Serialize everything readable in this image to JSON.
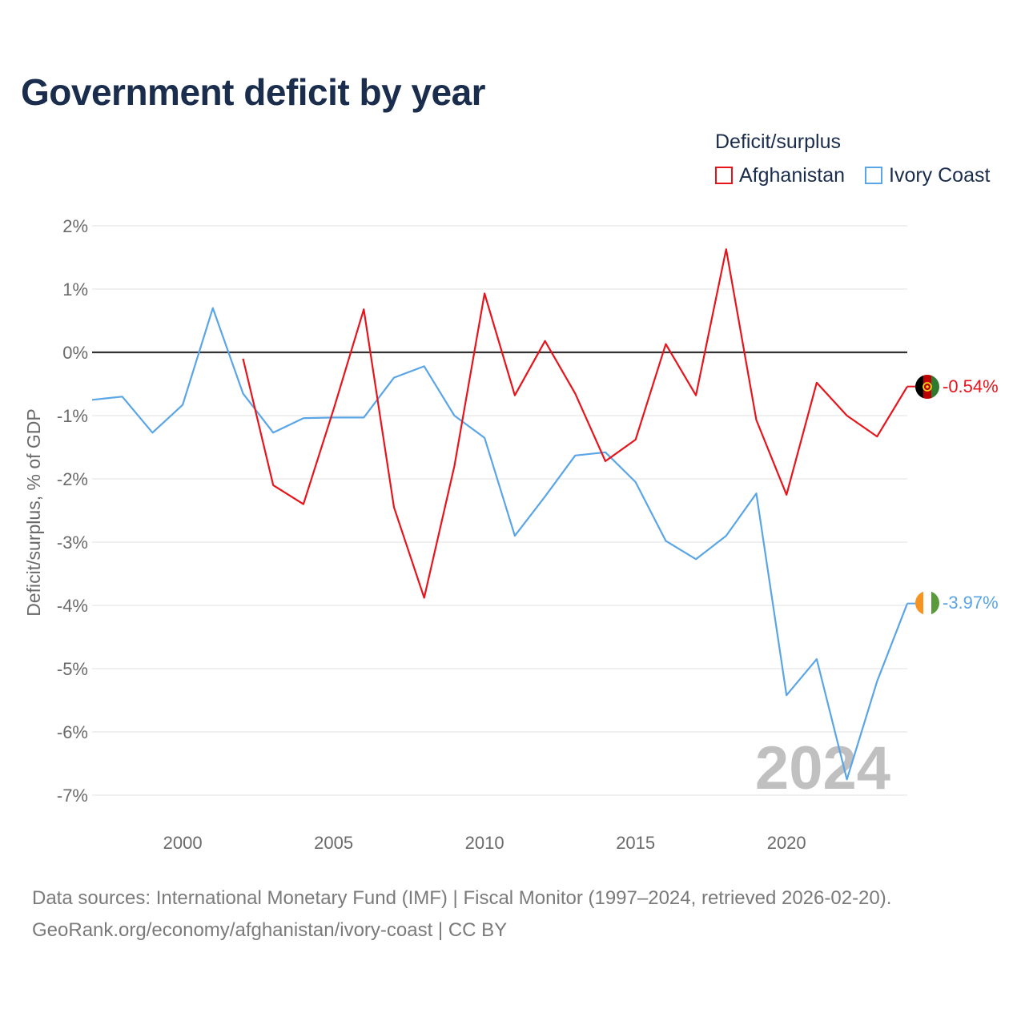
{
  "title": "Government deficit by year",
  "legend": {
    "title": "Deficit/surplus",
    "items": [
      {
        "name": "Afghanistan",
        "color": "#e8141c"
      },
      {
        "name": "Ivory Coast",
        "color": "#5aa5e6"
      }
    ]
  },
  "chart_data": {
    "type": "line",
    "title": "Government deficit by year",
    "xlabel": "",
    "ylabel": "Deficit/surplus, % of GDP",
    "xlim": [
      1997,
      2024
    ],
    "ylim": [
      -7,
      2
    ],
    "xticks": [
      2000,
      2005,
      2010,
      2015,
      2020
    ],
    "yticks": [
      2,
      1,
      0,
      -1,
      -2,
      -3,
      -4,
      -5,
      -6,
      -7
    ],
    "ytick_labels": [
      "2%",
      "1%",
      "0%",
      "-1%",
      "-2%",
      "-3%",
      "-4%",
      "-5%",
      "-6%",
      "-7%"
    ],
    "year_marker": "2024",
    "series": [
      {
        "name": "Afghanistan",
        "color": "#e8141c",
        "end_label": "-0.54%",
        "x": [
          2002,
          2003,
          2004,
          2005,
          2006,
          2007,
          2008,
          2009,
          2010,
          2011,
          2012,
          2013,
          2014,
          2015,
          2016,
          2017,
          2018,
          2019,
          2020,
          2021,
          2022,
          2023,
          2024
        ],
        "values": [
          -0.1,
          -2.1,
          -2.4,
          -0.9,
          0.68,
          -2.45,
          -3.88,
          -1.8,
          0.93,
          -0.68,
          0.18,
          -0.65,
          -1.72,
          -1.38,
          0.13,
          -0.68,
          1.63,
          -1.07,
          -2.25,
          -0.48,
          -1.0,
          -1.33,
          -0.54
        ]
      },
      {
        "name": "Ivory Coast",
        "color": "#5aa5e6",
        "end_label": "-3.97%",
        "x": [
          1997,
          1998,
          1999,
          2000,
          2001,
          2002,
          2003,
          2004,
          2005,
          2006,
          2007,
          2008,
          2009,
          2010,
          2011,
          2012,
          2013,
          2014,
          2015,
          2016,
          2017,
          2018,
          2019,
          2020,
          2021,
          2022,
          2023,
          2024
        ],
        "values": [
          -0.75,
          -0.7,
          -1.27,
          -0.83,
          0.7,
          -0.65,
          -1.27,
          -1.04,
          -1.03,
          -1.03,
          -0.4,
          -0.22,
          -1.0,
          -1.35,
          -2.9,
          -2.28,
          -1.63,
          -1.58,
          -2.05,
          -2.98,
          -3.27,
          -2.9,
          -2.23,
          -5.42,
          -4.85,
          -6.75,
          -5.2,
          -3.97
        ]
      }
    ]
  },
  "footer": {
    "line1": "Data sources: International Monetary Fund (IMF) | Fiscal Monitor (1997–2024, retrieved 2026-02-20).",
    "line2": "GeoRank.org/economy/afghanistan/ivory-coast | CC BY"
  }
}
